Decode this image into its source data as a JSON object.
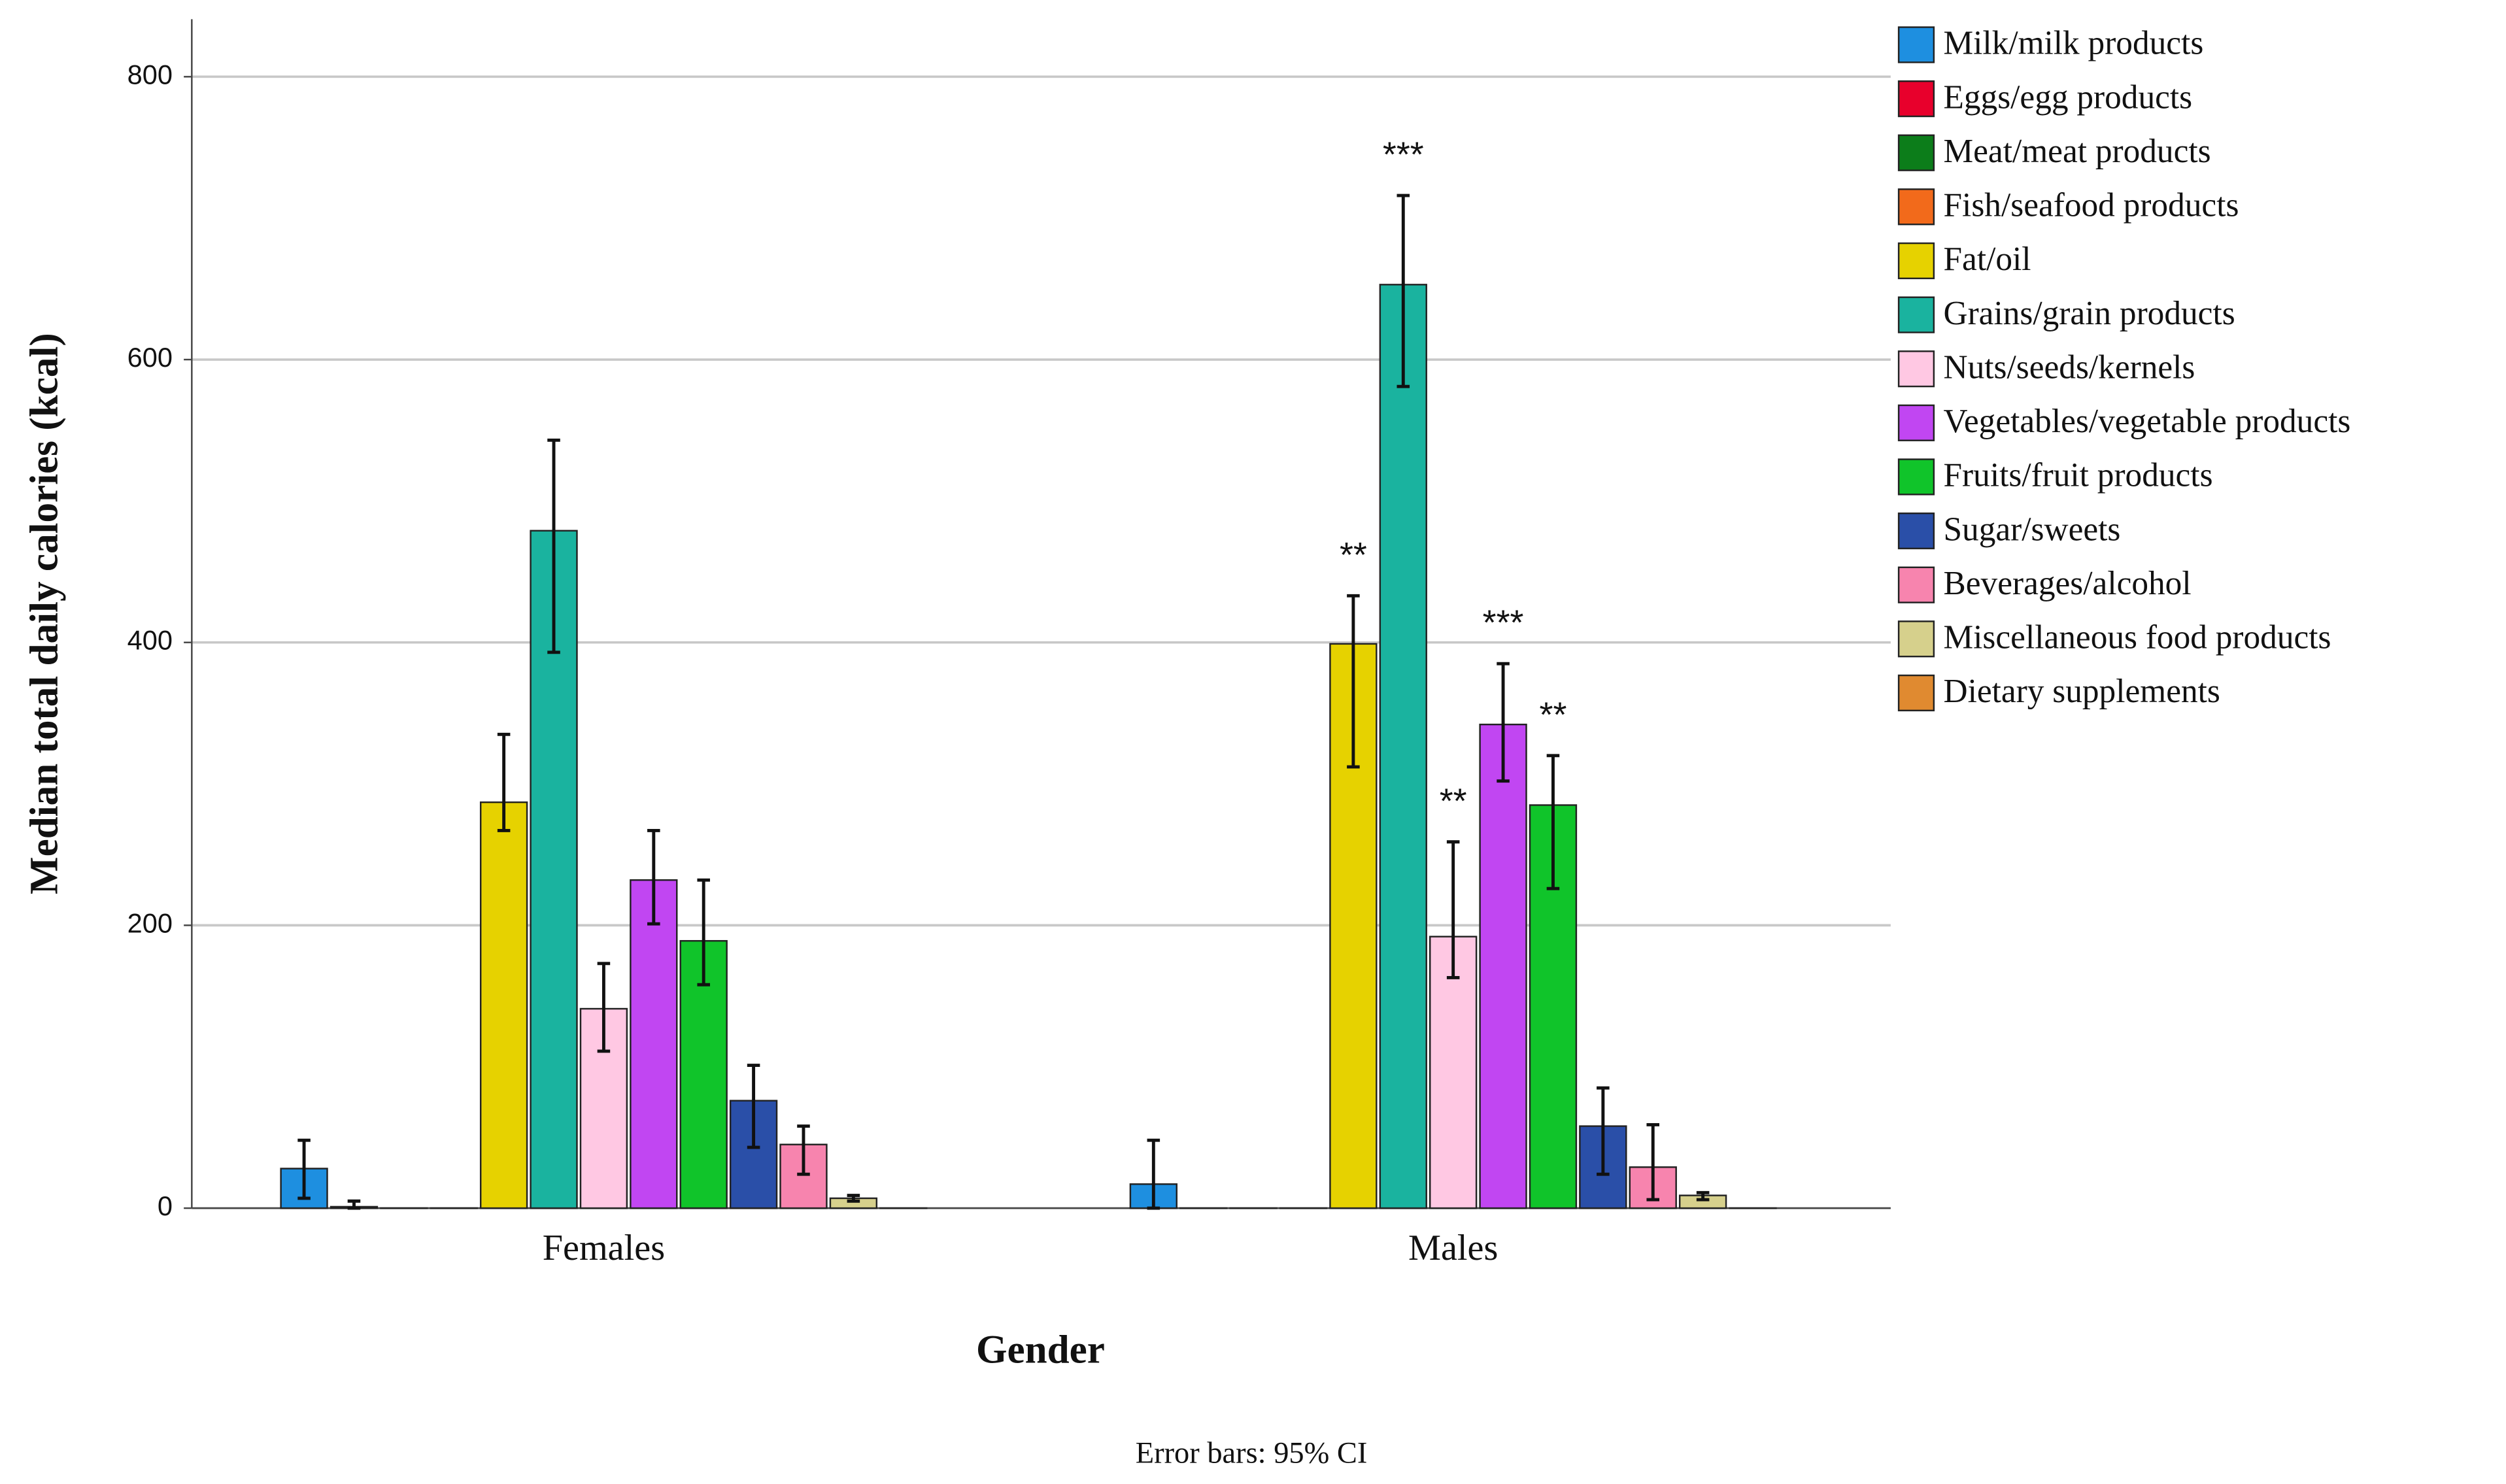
{
  "chart_data": {
    "type": "bar",
    "y_label": "Median total daily calories (kcal)",
    "x_label": "Gender",
    "footnote": "Error bars: 95% CI",
    "categories": [
      "Females",
      "Males"
    ],
    "ylim": [
      0,
      800
    ],
    "yticks": [
      0,
      200,
      400,
      600,
      800
    ],
    "grid": true,
    "legend": "right",
    "series": [
      {
        "name": "Milk/milk products",
        "color": "#1e8fe0",
        "values": [
          28,
          17
        ],
        "ci_low": [
          7,
          0
        ],
        "ci_high": [
          48,
          48
        ],
        "stars": [
          null,
          null
        ]
      },
      {
        "name": "Eggs/egg products",
        "color": "#e8002c",
        "values": [
          1,
          0
        ],
        "ci_low": [
          0,
          null
        ],
        "ci_high": [
          5,
          null
        ],
        "stars": [
          null,
          null
        ]
      },
      {
        "name": "Meat/meat products",
        "color": "#0c7d1a",
        "values": [
          0,
          0
        ],
        "ci_low": [
          null,
          null
        ],
        "ci_high": [
          null,
          null
        ],
        "stars": [
          null,
          null
        ]
      },
      {
        "name": "Fish/seafood products",
        "color": "#f26a1b",
        "values": [
          0,
          0
        ],
        "ci_low": [
          null,
          null
        ],
        "ci_high": [
          null,
          null
        ],
        "stars": [
          null,
          null
        ]
      },
      {
        "name": "Fat/oil",
        "color": "#e6d200",
        "values": [
          287,
          399
        ],
        "ci_low": [
          267,
          312
        ],
        "ci_high": [
          335,
          433
        ],
        "stars": [
          null,
          "**"
        ]
      },
      {
        "name": "Grains/grain products",
        "color": "#1ab39f",
        "values": [
          479,
          653
        ],
        "ci_low": [
          393,
          581
        ],
        "ci_high": [
          543,
          716
        ],
        "stars": [
          null,
          "***"
        ]
      },
      {
        "name": "Nuts/seeds/kernels",
        "color": "#ffc8e3",
        "values": [
          141,
          192
        ],
        "ci_low": [
          111,
          163
        ],
        "ci_high": [
          173,
          259
        ],
        "stars": [
          null,
          "**"
        ]
      },
      {
        "name": "Vegetables/vegetable products",
        "color": "#c146f2",
        "values": [
          232,
          342
        ],
        "ci_low": [
          201,
          302
        ],
        "ci_high": [
          267,
          385
        ],
        "stars": [
          null,
          "***"
        ]
      },
      {
        "name": "Fruits/fruit products",
        "color": "#10c42a",
        "values": [
          189,
          285
        ],
        "ci_low": [
          158,
          226
        ],
        "ci_high": [
          232,
          320
        ],
        "stars": [
          null,
          "**"
        ]
      },
      {
        "name": "Sugar/sweets",
        "color": "#2a4fa8",
        "values": [
          76,
          58
        ],
        "ci_low": [
          43,
          24
        ],
        "ci_high": [
          101,
          85
        ],
        "stars": [
          null,
          null
        ]
      },
      {
        "name": "Beverages/alcohol",
        "color": "#f784ae",
        "values": [
          45,
          29
        ],
        "ci_low": [
          24,
          6
        ],
        "ci_high": [
          58,
          59
        ],
        "stars": [
          null,
          null
        ]
      },
      {
        "name": "Miscellaneous food products",
        "color": "#d6d08c",
        "values": [
          7,
          9
        ],
        "ci_low": [
          5,
          6
        ],
        "ci_high": [
          9,
          11
        ],
        "stars": [
          null,
          null
        ]
      },
      {
        "name": "Dietary supplements",
        "color": "#e08a30",
        "values": [
          0,
          0
        ],
        "ci_low": [
          null,
          null
        ],
        "ci_high": [
          null,
          null
        ],
        "stars": [
          null,
          null
        ]
      }
    ]
  }
}
